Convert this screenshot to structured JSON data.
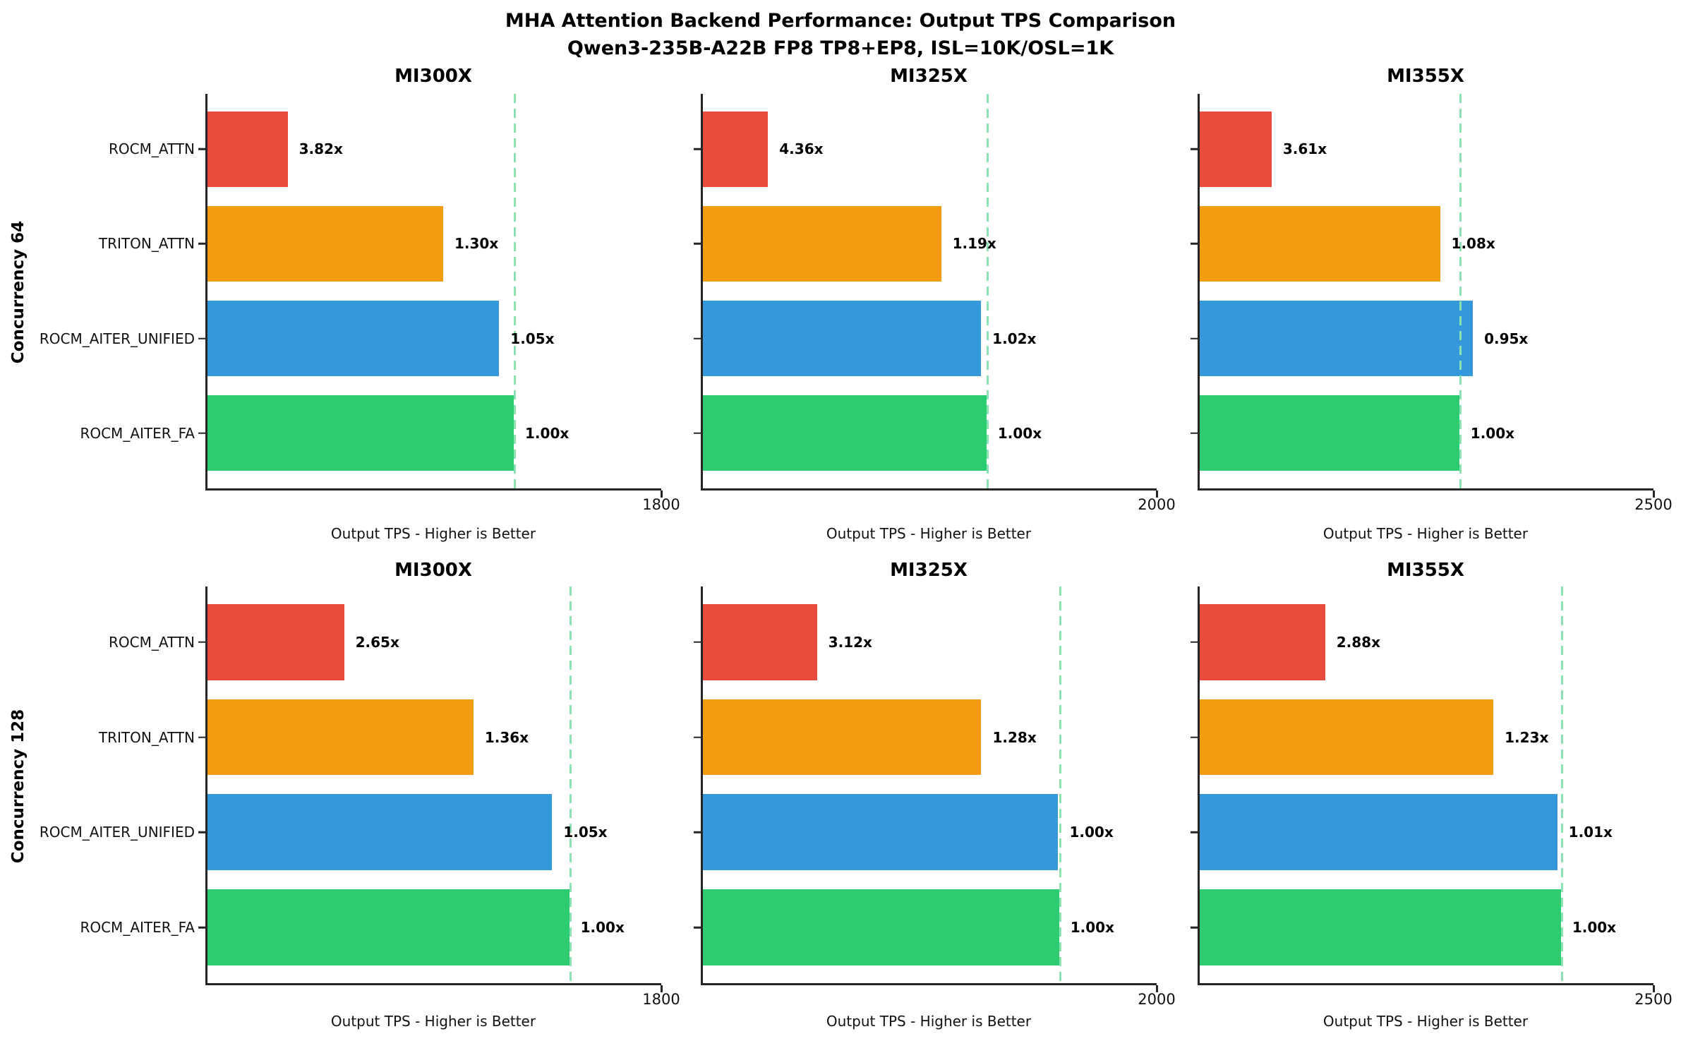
{
  "chart_data": {
    "type": "bar",
    "orientation": "horizontal",
    "suptitle": [
      "MHA Attention Backend Performance: Output TPS Comparison",
      "Qwen3-235B-A22B FP8 TP8+EP8, ISL=10K/OSL=1K"
    ],
    "xlabel": "Output TPS - Higher is Better",
    "backends_top_to_bottom": [
      "ROCM_ATTN",
      "TRITON_ATTN",
      "ROCM_AITER_UNIFIED",
      "ROCM_AITER_FA"
    ],
    "bar_colors": {
      "ROCM_ATTN": "#e74c3c",
      "TRITON_ATTN": "#f39c12",
      "ROCM_AITER_UNIFIED": "#3498db",
      "ROCM_AITER_FA": "#2ecc71"
    },
    "baseline_line_color": "#8ce3b1",
    "axis_color": "#262626",
    "legend": "none",
    "grid": false,
    "xmin": 0,
    "rows": [
      {
        "row_label": "Concurrency 64",
        "subplots": [
          {
            "title": "MI300X",
            "xmax": 1800,
            "xtick": "1800",
            "baseline_tps": 1215,
            "bars": [
              {
                "backend": "ROCM_ATTN",
                "tps": 318,
                "ratio_label": "3.82x"
              },
              {
                "backend": "TRITON_ATTN",
                "tps": 935,
                "ratio_label": "1.30x"
              },
              {
                "backend": "ROCM_AITER_UNIFIED",
                "tps": 1157,
                "ratio_label": "1.05x"
              },
              {
                "backend": "ROCM_AITER_FA",
                "tps": 1215,
                "ratio_label": "1.00x"
              }
            ]
          },
          {
            "title": "MI325X",
            "xmax": 2000,
            "xtick": "2000",
            "baseline_tps": 1250,
            "bars": [
              {
                "backend": "ROCM_ATTN",
                "tps": 287,
                "ratio_label": "4.36x"
              },
              {
                "backend": "TRITON_ATTN",
                "tps": 1050,
                "ratio_label": "1.19x"
              },
              {
                "backend": "ROCM_AITER_UNIFIED",
                "tps": 1226,
                "ratio_label": "1.02x"
              },
              {
                "backend": "ROCM_AITER_FA",
                "tps": 1250,
                "ratio_label": "1.00x"
              }
            ]
          },
          {
            "title": "MI355X",
            "xmax": 2500,
            "xtick": "2500",
            "baseline_tps": 1430,
            "bars": [
              {
                "backend": "ROCM_ATTN",
                "tps": 396,
                "ratio_label": "3.61x"
              },
              {
                "backend": "TRITON_ATTN",
                "tps": 1324,
                "ratio_label": "1.08x"
              },
              {
                "backend": "ROCM_AITER_UNIFIED",
                "tps": 1505,
                "ratio_label": "0.95x"
              },
              {
                "backend": "ROCM_AITER_FA",
                "tps": 1430,
                "ratio_label": "1.00x"
              }
            ]
          }
        ]
      },
      {
        "row_label": "Concurrency 128",
        "subplots": [
          {
            "title": "MI300X",
            "xmax": 1800,
            "xtick": "1800",
            "baseline_tps": 1435,
            "bars": [
              {
                "backend": "ROCM_ATTN",
                "tps": 542,
                "ratio_label": "2.65x"
              },
              {
                "backend": "TRITON_ATTN",
                "tps": 1055,
                "ratio_label": "1.36x"
              },
              {
                "backend": "ROCM_AITER_UNIFIED",
                "tps": 1367,
                "ratio_label": "1.05x"
              },
              {
                "backend": "ROCM_AITER_FA",
                "tps": 1435,
                "ratio_label": "1.00x"
              }
            ]
          },
          {
            "title": "MI325X",
            "xmax": 2000,
            "xtick": "2000",
            "baseline_tps": 1570,
            "bars": [
              {
                "backend": "ROCM_ATTN",
                "tps": 503,
                "ratio_label": "3.12x"
              },
              {
                "backend": "TRITON_ATTN",
                "tps": 1227,
                "ratio_label": "1.28x"
              },
              {
                "backend": "ROCM_AITER_UNIFIED",
                "tps": 1566,
                "ratio_label": "1.00x"
              },
              {
                "backend": "ROCM_AITER_FA",
                "tps": 1570,
                "ratio_label": "1.00x"
              }
            ]
          },
          {
            "title": "MI355X",
            "xmax": 2500,
            "xtick": "2500",
            "baseline_tps": 1990,
            "bars": [
              {
                "backend": "ROCM_ATTN",
                "tps": 691,
                "ratio_label": "2.88x"
              },
              {
                "backend": "TRITON_ATTN",
                "tps": 1618,
                "ratio_label": "1.23x"
              },
              {
                "backend": "ROCM_AITER_UNIFIED",
                "tps": 1970,
                "ratio_label": "1.01x"
              },
              {
                "backend": "ROCM_AITER_FA",
                "tps": 1990,
                "ratio_label": "1.00x"
              }
            ]
          }
        ]
      }
    ]
  }
}
